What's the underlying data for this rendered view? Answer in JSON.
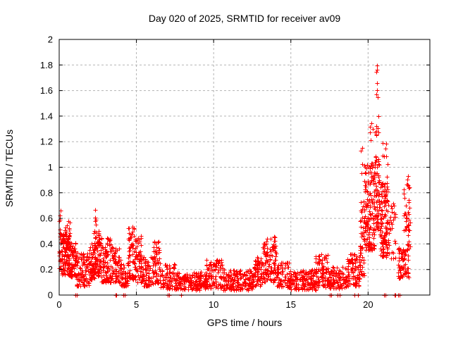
{
  "window": {
    "title": "Day 020 of 2025, SRMTID for receiver av09"
  },
  "chart_data": {
    "type": "scatter",
    "title": "Day 020 of 2025, SRMTID for receiver av09",
    "xlabel": "GPS time / hours",
    "ylabel": "SRMTID / TECUs",
    "xlim": [
      0,
      24
    ],
    "ylim": [
      0,
      2
    ],
    "xticks": [
      0,
      5,
      10,
      15,
      20
    ],
    "xtick_labels": [
      "0",
      "5",
      "10",
      "15",
      "20"
    ],
    "yticks": [
      0,
      0.2,
      0.4,
      0.6,
      0.8,
      1,
      1.2,
      1.4,
      1.6,
      1.8,
      2
    ],
    "ytick_labels": [
      "0",
      "0.2",
      "0.4",
      "0.6",
      "0.8",
      "1",
      "1.2",
      "1.4",
      "1.6",
      "1.8",
      "2"
    ],
    "grid": {
      "enabled": true,
      "color": "#b3b3b3",
      "style": "dashed"
    },
    "legend": "none",
    "background": "#ffffff",
    "marker": {
      "symbol": "plus",
      "color": "#ff0000",
      "size": 6
    },
    "series_name": "SRMTID",
    "description": "Dense one-day scatter of SRMTID values; quiet daytime baseline 0.05-0.45 TECUs with small peaks near hours 0-1, 2.5, 3.2, 4.7, 6.2, 13.5 and a strong disturbance hours 19.5-22.8 reaching 1.81 TECUs near hour 20.6.",
    "clusters": [
      {
        "t0": 0.0,
        "t1": 0.12,
        "n": 16,
        "lo": 0.2,
        "hi": 0.52
      },
      {
        "t0": 0.02,
        "t1": 0.1,
        "n": 4,
        "lo": 0.55,
        "hi": 0.7
      },
      {
        "t0": 0.12,
        "t1": 0.65,
        "n": 110,
        "lo": 0.16,
        "hi": 0.48
      },
      {
        "t0": 0.3,
        "t1": 0.75,
        "n": 10,
        "lo": 0.48,
        "hi": 0.58
      },
      {
        "t0": 0.65,
        "t1": 1.1,
        "n": 70,
        "lo": 0.14,
        "hi": 0.42
      },
      {
        "t0": 1.1,
        "t1": 1.95,
        "n": 95,
        "lo": 0.07,
        "hi": 0.33
      },
      {
        "t0": 1.95,
        "t1": 2.3,
        "n": 55,
        "lo": 0.12,
        "hi": 0.4
      },
      {
        "t0": 2.25,
        "t1": 2.65,
        "n": 70,
        "lo": 0.15,
        "hi": 0.5
      },
      {
        "t0": 2.28,
        "t1": 2.5,
        "n": 5,
        "lo": 0.55,
        "hi": 0.68
      },
      {
        "t0": 2.65,
        "t1": 3.35,
        "n": 85,
        "lo": 0.1,
        "hi": 0.45
      },
      {
        "t0": 3.35,
        "t1": 4.0,
        "n": 70,
        "lo": 0.1,
        "hi": 0.38
      },
      {
        "t0": 4.0,
        "t1": 4.45,
        "n": 45,
        "lo": 0.07,
        "hi": 0.25
      },
      {
        "t0": 4.45,
        "t1": 4.9,
        "n": 60,
        "lo": 0.12,
        "hi": 0.54
      },
      {
        "t0": 4.9,
        "t1": 5.35,
        "n": 60,
        "lo": 0.1,
        "hi": 0.48
      },
      {
        "t0": 5.35,
        "t1": 6.05,
        "n": 65,
        "lo": 0.07,
        "hi": 0.3
      },
      {
        "t0": 6.05,
        "t1": 6.5,
        "n": 55,
        "lo": 0.09,
        "hi": 0.42
      },
      {
        "t0": 6.5,
        "t1": 7.5,
        "n": 75,
        "lo": 0.05,
        "hi": 0.25
      },
      {
        "t0": 7.5,
        "t1": 9.5,
        "n": 170,
        "lo": 0.04,
        "hi": 0.18
      },
      {
        "t0": 9.5,
        "t1": 10.6,
        "n": 95,
        "lo": 0.05,
        "hi": 0.28
      },
      {
        "t0": 10.6,
        "t1": 12.6,
        "n": 175,
        "lo": 0.04,
        "hi": 0.2
      },
      {
        "t0": 12.6,
        "t1": 13.15,
        "n": 60,
        "lo": 0.07,
        "hi": 0.3
      },
      {
        "t0": 13.15,
        "t1": 14.1,
        "n": 110,
        "lo": 0.1,
        "hi": 0.46
      },
      {
        "t0": 14.1,
        "t1": 15.0,
        "n": 80,
        "lo": 0.06,
        "hi": 0.26
      },
      {
        "t0": 15.0,
        "t1": 16.6,
        "n": 135,
        "lo": 0.04,
        "hi": 0.2
      },
      {
        "t0": 16.6,
        "t1": 17.4,
        "n": 80,
        "lo": 0.06,
        "hi": 0.32
      },
      {
        "t0": 17.4,
        "t1": 18.6,
        "n": 100,
        "lo": 0.05,
        "hi": 0.22
      },
      {
        "t0": 18.6,
        "t1": 19.45,
        "n": 85,
        "lo": 0.07,
        "hi": 0.32
      },
      {
        "t0": 19.45,
        "t1": 19.75,
        "n": 45,
        "lo": 0.15,
        "hi": 0.75
      },
      {
        "t0": 19.55,
        "t1": 19.7,
        "n": 4,
        "lo": 0.95,
        "hi": 1.22
      },
      {
        "t0": 19.75,
        "t1": 20.45,
        "n": 150,
        "lo": 0.35,
        "hi": 1.05
      },
      {
        "t0": 20.1,
        "t1": 20.45,
        "n": 6,
        "lo": 1.2,
        "hi": 1.35
      },
      {
        "t0": 20.45,
        "t1": 20.75,
        "n": 55,
        "lo": 0.5,
        "hi": 1.1
      },
      {
        "t0": 20.48,
        "t1": 20.65,
        "n": 6,
        "lo": 1.25,
        "hi": 1.36
      },
      {
        "t0": 20.52,
        "t1": 20.62,
        "n": 4,
        "lo": 1.55,
        "hi": 1.66
      },
      {
        "t0": 20.53,
        "t1": 20.62,
        "n": 3,
        "lo": 1.74,
        "hi": 1.82
      },
      {
        "t0": 20.63,
        "t1": 20.68,
        "n": 1,
        "lo": 1.4,
        "hi": 1.4
      },
      {
        "t0": 20.75,
        "t1": 21.3,
        "n": 120,
        "lo": 0.3,
        "hi": 0.88
      },
      {
        "t0": 20.9,
        "t1": 21.25,
        "n": 8,
        "lo": 0.9,
        "hi": 1.2
      },
      {
        "t0": 21.3,
        "t1": 21.8,
        "n": 30,
        "lo": 0.28,
        "hi": 0.72
      },
      {
        "t0": 21.95,
        "t1": 22.65,
        "n": 70,
        "lo": 0.13,
        "hi": 0.38
      },
      {
        "t0": 22.3,
        "t1": 22.72,
        "n": 40,
        "lo": 0.38,
        "hi": 0.88
      },
      {
        "t0": 22.45,
        "t1": 22.6,
        "n": 2,
        "lo": 0.9,
        "hi": 0.93
      }
    ],
    "zero_points": [
      1.07,
      1.15,
      3.63,
      3.68,
      4.15,
      4.25,
      7.03,
      7.1,
      7.9,
      17.52,
      17.6,
      18.0,
      18.15,
      19.1,
      19.35,
      21.05,
      21.12,
      21.7,
      21.78,
      21.95,
      22.02
    ]
  }
}
